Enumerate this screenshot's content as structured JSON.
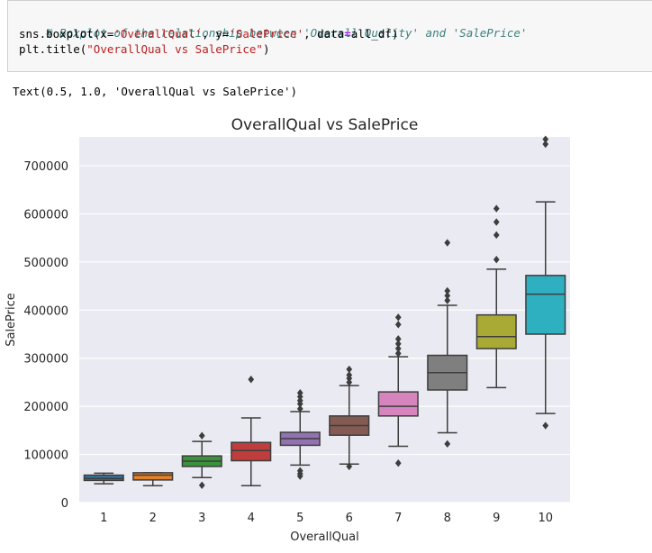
{
  "code_cell": {
    "comment": "# Boxplot of the relationship between 'Overall Quality' and 'SalePrice'",
    "line2_prefix": "sns.boxplot(x=",
    "line2_x": "'OverallQual'",
    "line2_mid": ", y=",
    "line2_y": "'SalePrice'",
    "line2_suffix_a": ", data",
    "line2_eq": "=",
    "line2_suffix_b": "all_df)",
    "line3_prefix": "plt.title(",
    "line3_str": "\"OverallQual vs SalePrice\"",
    "line3_suffix": ")"
  },
  "output": {
    "text": "Text(0.5, 1.0, 'OverallQual vs SalePrice')"
  },
  "chart_data": {
    "type": "boxplot",
    "title": "OverallQual vs SalePrice",
    "xlabel": "OverallQual",
    "ylabel": "SalePrice",
    "ylim": [
      0,
      760000
    ],
    "yticks": [
      0,
      100000,
      200000,
      300000,
      400000,
      500000,
      600000,
      700000
    ],
    "ytick_labels": [
      "0",
      "100000",
      "200000",
      "300000",
      "400000",
      "500000",
      "600000",
      "700000"
    ],
    "grid": true,
    "background": "#eaeaf2",
    "categories": [
      "1",
      "2",
      "3",
      "4",
      "5",
      "6",
      "7",
      "8",
      "9",
      "10"
    ],
    "colors": [
      "#3274a1",
      "#e1812c",
      "#3a923a",
      "#c03d3e",
      "#9372b2",
      "#845b53",
      "#d684bd",
      "#7f7f7f",
      "#a9aa35",
      "#2eb0c0"
    ],
    "boxes": [
      {
        "q1": 46000,
        "median": 50000,
        "q3": 57000,
        "lo": 39000,
        "hi": 61000,
        "fliers": []
      },
      {
        "q1": 47000,
        "median": 57000,
        "q3": 62000,
        "lo": 35000,
        "hi": 62000,
        "fliers": []
      },
      {
        "q1": 75000,
        "median": 86000,
        "q3": 97000,
        "lo": 52000,
        "hi": 127000,
        "fliers": [
          36000,
          139000
        ]
      },
      {
        "q1": 87000,
        "median": 108000,
        "q3": 125000,
        "lo": 35000,
        "hi": 176000,
        "fliers": [
          256000
        ]
      },
      {
        "q1": 119000,
        "median": 133000,
        "q3": 146000,
        "lo": 78000,
        "hi": 189000,
        "fliers": [
          55000,
          60000,
          66000,
          195000,
          205000,
          212000,
          220000,
          228000
        ]
      },
      {
        "q1": 140000,
        "median": 160000,
        "q3": 180000,
        "lo": 80000,
        "hi": 243000,
        "fliers": [
          75000,
          250000,
          258000,
          265000,
          277000
        ]
      },
      {
        "q1": 180000,
        "median": 200000,
        "q3": 230000,
        "lo": 117000,
        "hi": 303000,
        "fliers": [
          82000,
          310000,
          320000,
          330000,
          340000,
          370000,
          385000
        ]
      },
      {
        "q1": 234000,
        "median": 270000,
        "q3": 306000,
        "lo": 145000,
        "hi": 410000,
        "fliers": [
          122000,
          420000,
          430000,
          440000,
          540000
        ]
      },
      {
        "q1": 320000,
        "median": 345000,
        "q3": 390000,
        "lo": 239000,
        "hi": 485000,
        "fliers": [
          505000,
          556000,
          583000,
          611000
        ]
      },
      {
        "q1": 350000,
        "median": 433000,
        "q3": 472000,
        "lo": 185000,
        "hi": 625000,
        "fliers": [
          160000,
          745000,
          755000
        ]
      }
    ]
  }
}
